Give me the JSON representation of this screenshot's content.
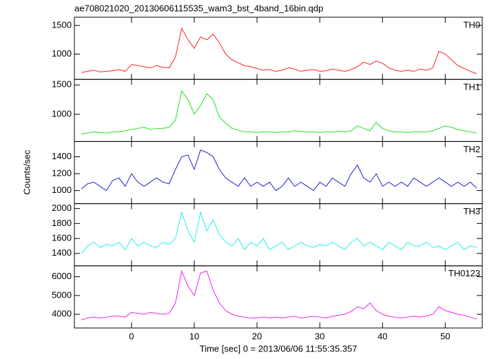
{
  "chart_data": {
    "type": "line",
    "title": "ae708021020_20130606115535_wam3_bst_4band_16bin.qdp",
    "xlabel": "Time [sec] 0 = 2013/06/06 11:55:35.357",
    "ylabel": "Counts/sec",
    "x": [
      -8,
      -7,
      -6,
      -5,
      -4,
      -3,
      -2,
      -1,
      0,
      1,
      2,
      3,
      4,
      5,
      6,
      7,
      8,
      9,
      10,
      11,
      12,
      13,
      14,
      15,
      16,
      17,
      18,
      19,
      20,
      21,
      22,
      23,
      24,
      25,
      26,
      27,
      28,
      29,
      30,
      31,
      32,
      33,
      34,
      35,
      36,
      37,
      38,
      39,
      40,
      41,
      42,
      43,
      44,
      45,
      46,
      47,
      48,
      49,
      50,
      51,
      52,
      53,
      54,
      55
    ],
    "xlim": [
      -9.1,
      55.9
    ],
    "xticks": [
      0,
      10,
      20,
      30,
      40,
      50
    ],
    "series": [
      {
        "name": "TH0",
        "color": "#ff2020",
        "ylim": [
          560,
          1643
        ],
        "yticks": [
          1000,
          1500
        ],
        "values": [
          680,
          700,
          720,
          690,
          700,
          710,
          730,
          700,
          820,
          800,
          780,
          760,
          800,
          770,
          760,
          950,
          1450,
          1250,
          1100,
          1300,
          1250,
          1350,
          1200,
          1000,
          900,
          850,
          800,
          780,
          750,
          720,
          730,
          700,
          720,
          760,
          740,
          700,
          720,
          730,
          700,
          710,
          740,
          720,
          700,
          730,
          780,
          860,
          820,
          880,
          840,
          760,
          720,
          700,
          720,
          700,
          740,
          720,
          760,
          1050,
          1000,
          900,
          800,
          750,
          700,
          660
        ]
      },
      {
        "name": "TH1",
        "color": "#20e020",
        "ylim": [
          536,
          1595
        ],
        "yticks": [
          1000,
          1500
        ],
        "values": [
          660,
          680,
          700,
          690,
          680,
          700,
          700,
          720,
          740,
          760,
          780,
          740,
          760,
          760,
          780,
          900,
          1400,
          1250,
          1000,
          1150,
          1350,
          1250,
          950,
          850,
          760,
          730,
          700,
          700,
          690,
          700,
          700,
          690,
          700,
          700,
          720,
          710,
          700,
          700,
          690,
          700,
          700,
          710,
          700,
          720,
          800,
          760,
          720,
          860,
          760,
          720,
          700,
          700,
          690,
          700,
          700,
          700,
          720,
          760,
          800,
          780,
          740,
          720,
          700,
          680
        ]
      },
      {
        "name": "TH2",
        "color": "#2020d0",
        "ylim": [
          845,
          1580
        ],
        "yticks": [
          1000,
          1200,
          1400
        ],
        "values": [
          1020,
          1080,
          1100,
          1050,
          1000,
          1120,
          1150,
          1050,
          1200,
          1100,
          1050,
          1100,
          1150,
          1100,
          1080,
          1250,
          1400,
          1420,
          1250,
          1480,
          1450,
          1400,
          1250,
          1150,
          1100,
          1050,
          1150,
          1050,
          1100,
          1050,
          1100,
          1000,
          1050,
          1150,
          1050,
          1100,
          1050,
          1000,
          1100,
          1050,
          1150,
          1100,
          1050,
          1200,
          1300,
          1150,
          1100,
          1200,
          1050,
          1100,
          1050,
          1100,
          1050,
          1150,
          1100,
          1050,
          1100,
          1150,
          1100,
          1050,
          1100,
          1050,
          1100,
          1030
        ]
      },
      {
        "name": "TH3",
        "color": "#20f0f0",
        "ylim": [
          1234,
          2065
        ],
        "yticks": [
          1400,
          1600,
          1800,
          2000
        ],
        "values": [
          1400,
          1500,
          1550,
          1480,
          1520,
          1500,
          1550,
          1450,
          1600,
          1500,
          1550,
          1500,
          1480,
          1550,
          1520,
          1600,
          1950,
          1700,
          1550,
          1950,
          1700,
          1850,
          1650,
          1550,
          1500,
          1600,
          1450,
          1550,
          1500,
          1600,
          1450,
          1500,
          1550,
          1450,
          1500,
          1550,
          1500,
          1480,
          1520,
          1500,
          1550,
          1500,
          1450,
          1550,
          1600,
          1500,
          1550,
          1500,
          1450,
          1550,
          1500,
          1450,
          1550,
          1500,
          1500,
          1550,
          1480,
          1500,
          1450,
          1500,
          1550,
          1450,
          1500,
          1480
        ]
      },
      {
        "name": "TH0123",
        "color": "#f020f0",
        "ylim": [
          3270,
          6580
        ],
        "yticks": [
          4000,
          5000,
          6000
        ],
        "values": [
          3700,
          3800,
          3850,
          3800,
          3850,
          3900,
          3900,
          3850,
          4100,
          4050,
          4000,
          4100,
          4050,
          4000,
          4050,
          4600,
          6300,
          5500,
          5000,
          6200,
          6300,
          5300,
          4600,
          4200,
          4000,
          3900,
          3850,
          3800,
          3800,
          3850,
          3800,
          3850,
          3800,
          3850,
          3900,
          3800,
          3850,
          3900,
          3850,
          3800,
          3900,
          3950,
          4000,
          4150,
          4400,
          4300,
          4600,
          4200,
          4000,
          3900,
          3850,
          3800,
          3850,
          3900,
          3850,
          3900,
          4000,
          4400,
          4200,
          4100,
          4000,
          3950,
          3850,
          3750
        ]
      }
    ]
  }
}
